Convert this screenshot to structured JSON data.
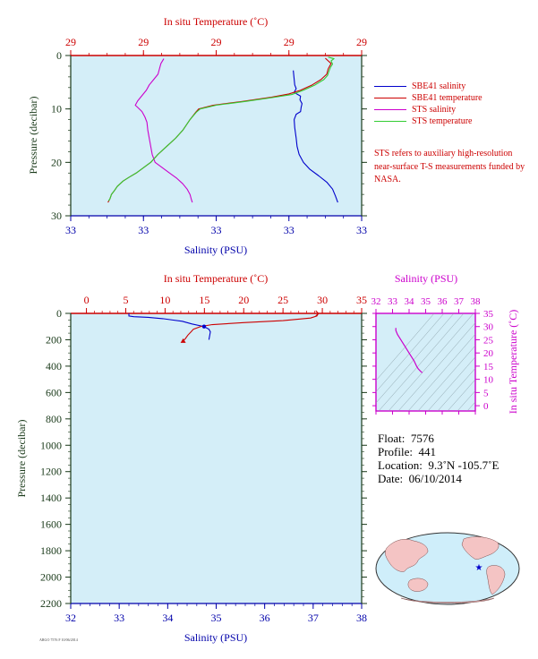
{
  "chart_data": [
    {
      "type": "line",
      "title": "",
      "xlabel_top": "In situ Temperature (˚C)",
      "xlabel_bottom": "Salinity (PSU)",
      "ylabel": "Pressure (decibar)",
      "top_ticks": [
        "29",
        "29",
        "29",
        "29",
        "29"
      ],
      "bottom_ticks": [
        "33",
        "33",
        "33",
        "33",
        "33"
      ],
      "y_ticks": [
        "0",
        "10",
        "20",
        "30"
      ],
      "ylim": [
        0,
        30
      ],
      "series": [
        {
          "name": "SBE41 salinity",
          "color": "#0000cc",
          "axis": "bottom",
          "points": [
            [
              0.765,
              2.8
            ],
            [
              0.77,
              5.5
            ],
            [
              0.775,
              6.2
            ],
            [
              0.768,
              6.9
            ],
            [
              0.79,
              7.6
            ],
            [
              0.788,
              8.3
            ],
            [
              0.795,
              9.0
            ],
            [
              0.792,
              9.7
            ],
            [
              0.79,
              10.5
            ],
            [
              0.775,
              11.0
            ],
            [
              0.768,
              12.0
            ],
            [
              0.77,
              13.5
            ],
            [
              0.775,
              15.5
            ],
            [
              0.778,
              17.0
            ],
            [
              0.785,
              18.5
            ],
            [
              0.8,
              20.0
            ],
            [
              0.822,
              21.3
            ],
            [
              0.852,
              22.5
            ],
            [
              0.88,
              23.7
            ],
            [
              0.9,
              25.0
            ],
            [
              0.91,
              26.3
            ],
            [
              0.918,
              27.5
            ]
          ]
        },
        {
          "name": "SBE41 temperature",
          "color": "#cc0000",
          "axis": "top",
          "points": [
            [
              0.875,
              0.5
            ],
            [
              0.895,
              1.5
            ],
            [
              0.885,
              2.5
            ],
            [
              0.88,
              3.5
            ],
            [
              0.86,
              4.5
            ],
            [
              0.83,
              5.5
            ],
            [
              0.79,
              6.5
            ],
            [
              0.75,
              7.2
            ],
            [
              0.69,
              7.8
            ],
            [
              0.59,
              8.6
            ],
            [
              0.49,
              9.3
            ],
            [
              0.44,
              10.0
            ],
            [
              0.43,
              10.6
            ],
            [
              0.41,
              12.0
            ],
            [
              0.385,
              14.0
            ],
            [
              0.36,
              15.5
            ],
            [
              0.33,
              17.0
            ],
            [
              0.3,
              18.5
            ],
            [
              0.275,
              20.0
            ],
            [
              0.25,
              21.0
            ],
            [
              0.225,
              22.0
            ],
            [
              0.2,
              22.8
            ],
            [
              0.18,
              23.5
            ],
            [
              0.16,
              24.5
            ],
            [
              0.15,
              25.3
            ],
            [
              0.14,
              26.0
            ],
            [
              0.135,
              26.8
            ],
            [
              0.128,
              27.5
            ]
          ]
        },
        {
          "name": "STS salinity",
          "color": "#cc00cc",
          "axis": "bottom",
          "points": [
            [
              0.32,
              0.6
            ],
            [
              0.31,
              1.5
            ],
            [
              0.305,
              2.5
            ],
            [
              0.3,
              3.5
            ],
            [
              0.285,
              4.5
            ],
            [
              0.27,
              5.5
            ],
            [
              0.26,
              6.5
            ],
            [
              0.245,
              7.5
            ],
            [
              0.23,
              8.5
            ],
            [
              0.222,
              9.3
            ],
            [
              0.232,
              9.8
            ],
            [
              0.245,
              10.5
            ],
            [
              0.255,
              11.5
            ],
            [
              0.262,
              12.5
            ],
            [
              0.265,
              14.0
            ],
            [
              0.27,
              15.5
            ],
            [
              0.275,
              17.0
            ],
            [
              0.28,
              18.5
            ],
            [
              0.29,
              20.0
            ],
            [
              0.315,
              21.0
            ],
            [
              0.34,
              22.0
            ],
            [
              0.365,
              23.0
            ],
            [
              0.385,
              24.0
            ],
            [
              0.4,
              25.0
            ],
            [
              0.41,
              26.0
            ],
            [
              0.415,
              27.0
            ],
            [
              0.418,
              27.5
            ]
          ]
        },
        {
          "name": "STS temperature",
          "color": "#33cc33",
          "axis": "top",
          "points": [
            [
              0.885,
              0.3
            ],
            [
              0.905,
              0.6
            ],
            [
              0.895,
              1.0
            ],
            [
              0.9,
              1.6
            ],
            [
              0.893,
              2.2
            ],
            [
              0.887,
              3.0
            ],
            [
              0.883,
              3.7
            ],
            [
              0.87,
              4.5
            ],
            [
              0.84,
              5.5
            ],
            [
              0.8,
              6.5
            ],
            [
              0.76,
              7.3
            ],
            [
              0.69,
              7.9
            ],
            [
              0.6,
              8.6
            ],
            [
              0.5,
              9.3
            ],
            [
              0.445,
              10.0
            ],
            [
              0.432,
              10.6
            ],
            [
              0.41,
              12.0
            ],
            [
              0.385,
              14.0
            ],
            [
              0.36,
              15.5
            ],
            [
              0.33,
              17.0
            ],
            [
              0.3,
              18.5
            ],
            [
              0.275,
              20.0
            ],
            [
              0.25,
              21.0
            ],
            [
              0.225,
              22.0
            ],
            [
              0.2,
              22.8
            ],
            [
              0.18,
              23.5
            ],
            [
              0.16,
              24.5
            ],
            [
              0.15,
              25.3
            ],
            [
              0.14,
              26.0
            ],
            [
              0.135,
              26.8
            ],
            [
              0.13,
              27.2
            ]
          ]
        }
      ],
      "legend_position": "right"
    },
    {
      "type": "line",
      "title": "",
      "xlabel_top": "In situ Temperature (˚C)",
      "xlabel_bottom": "Salinity (PSU)",
      "ylabel": "Pressure (decibar)",
      "top_ticks": [
        "0",
        "5",
        "10",
        "15",
        "20",
        "25",
        "30",
        "35"
      ],
      "bottom_ticks": [
        "32",
        "33",
        "34",
        "35",
        "36",
        "37",
        "38"
      ],
      "y_ticks": [
        "0",
        "200",
        "400",
        "600",
        "800",
        "1000",
        "1200",
        "1400",
        "1600",
        "1800",
        "2000",
        "2200"
      ],
      "xlim_temperature": [
        -2,
        35
      ],
      "xlim_salinity": [
        32,
        38
      ],
      "ylim": [
        0,
        2200
      ],
      "series": [
        {
          "name": "salinity",
          "color": "#0000cc",
          "points": [
            [
              33.2,
              0
            ],
            [
              33.2,
              20
            ],
            [
              33.3,
              25
            ],
            [
              33.6,
              30
            ],
            [
              33.9,
              40
            ],
            [
              34.1,
              50
            ],
            [
              34.3,
              60
            ],
            [
              34.5,
              80
            ],
            [
              34.75,
              100
            ],
            [
              34.85,
              120
            ],
            [
              34.88,
              140
            ],
            [
              34.87,
              160
            ],
            [
              34.86,
              180
            ],
            [
              34.85,
              200
            ]
          ]
        },
        {
          "name": "temperature",
          "color": "#cc0000",
          "points": [
            [
              29.5,
              0
            ],
            [
              29.3,
              20
            ],
            [
              28.5,
              35
            ],
            [
              25,
              55
            ],
            [
              20,
              70
            ],
            [
              16,
              85
            ],
            [
              14.5,
              100
            ],
            [
              13.6,
              120
            ],
            [
              13.3,
              140
            ],
            [
              12.9,
              165
            ],
            [
              12.6,
              190
            ],
            [
              12.3,
              210
            ]
          ]
        }
      ],
      "end_markers": [
        "salinity-start",
        "temperature-start",
        "salinity-end",
        "temperature-end"
      ]
    },
    {
      "type": "line",
      "title": "",
      "xlabel_top": "Salinity (PSU)",
      "ylabel": "In situ Temperature (˚C)",
      "x_ticks": [
        "32",
        "33",
        "34",
        "35",
        "36",
        "37",
        "38"
      ],
      "y_ticks": [
        "0",
        "5",
        "10",
        "15",
        "20",
        "25",
        "30",
        "35"
      ],
      "xlim": [
        32,
        38
      ],
      "ylim": [
        -2,
        35
      ],
      "series": [
        {
          "name": "T-S",
          "color": "#cc00cc",
          "points": [
            [
              33.2,
              29.5
            ],
            [
              33.2,
              28.5
            ],
            [
              33.3,
              27
            ],
            [
              33.5,
              25
            ],
            [
              33.8,
              22
            ],
            [
              34.1,
              19
            ],
            [
              34.3,
              17
            ],
            [
              34.45,
              15
            ],
            [
              34.55,
              14
            ],
            [
              34.7,
              13
            ],
            [
              34.8,
              12.5
            ]
          ]
        }
      ]
    }
  ],
  "colors": {
    "plot_bg": "#d4eef8",
    "temp_axis": "#cc0000",
    "salinity_axis": "#0000aa",
    "pressure_axis": "#1a3a1a",
    "ts_axis": "#cc00cc"
  },
  "info": {
    "float_label": "Float:",
    "float_value": "7576",
    "profile_label": "Profile:",
    "profile_value": "441",
    "location_label": "Location:",
    "location_value": "9.3˚N  -105.7˚E",
    "date_label": "Date:",
    "date_value": "06/10/2014"
  },
  "legend": [
    {
      "label": "SBE41 salinity",
      "color": "#0000cc"
    },
    {
      "label": "SBE41 temperature",
      "color": "#cc0000"
    },
    {
      "label": "STS salinity",
      "color": "#cc00cc"
    },
    {
      "label": "STS temperature",
      "color": "#33cc33"
    }
  ],
  "note": "STS refers to auxiliary high-resolution near-surface T-S measurements funded by NASA.",
  "map": {
    "marker": "star",
    "marker_color": "#0000cc"
  },
  "footer_text": "ARGO 7576 F 10/06/2014"
}
